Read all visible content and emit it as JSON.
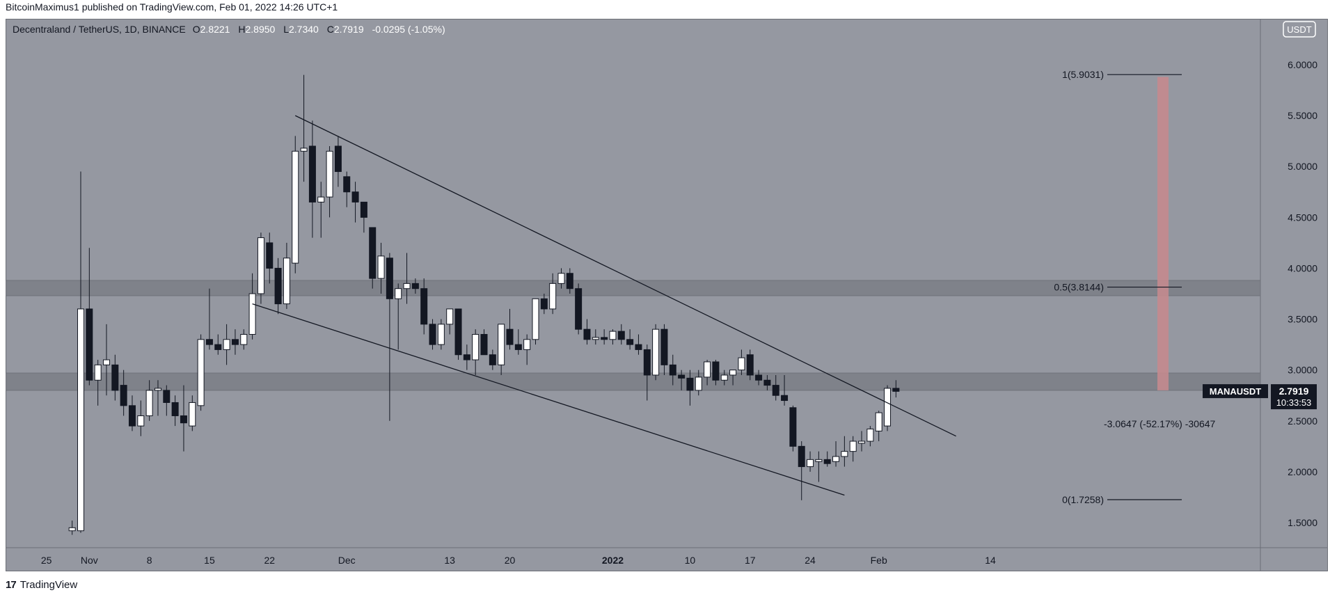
{
  "publisher": "BitcoinMaximus1 published on TradingView.com, Feb 01, 2022 14:26 UTC+1",
  "header": {
    "symbol": "Decentraland / TetherUS, 1D, BINANCE",
    "o_label": "O",
    "o_value": "2.8221",
    "h_label": "H",
    "h_value": "2.8950",
    "l_label": "L",
    "l_value": "2.7340",
    "c_label": "C",
    "c_value": "2.7919",
    "change": "-0.0295 (-1.05%)"
  },
  "currency_badge": "USDT",
  "price_tag": {
    "symbol": "MANAUSDT",
    "price": "2.7919",
    "countdown": "10:33:53"
  },
  "measure_label": "-3.0647 (-52.17%) -30647",
  "footer_brand": "TradingView",
  "colors": {
    "background": "#9598a1",
    "up": "#ffffff",
    "down": "#131722",
    "zone": "#7b7e86",
    "target": "#c48a8e"
  },
  "chart_data": {
    "type": "candlestick",
    "interval": "1D",
    "yrange": [
      1.4,
      6.1
    ],
    "yticks": [
      "6.0000",
      "5.5000",
      "5.0000",
      "4.5000",
      "4.0000",
      "3.5000",
      "3.0000",
      "2.5000",
      "2.0000",
      "1.5000"
    ],
    "xticks": [
      {
        "label": "25",
        "d": -4
      },
      {
        "label": "Nov",
        "d": 1
      },
      {
        "label": "8",
        "d": 8
      },
      {
        "label": "15",
        "d": 15
      },
      {
        "label": "22",
        "d": 22
      },
      {
        "label": "Dec",
        "d": 31
      },
      {
        "label": "13",
        "d": 43
      },
      {
        "label": "20",
        "d": 50
      },
      {
        "label": "2022",
        "d": 62,
        "bold": true
      },
      {
        "label": "10",
        "d": 71
      },
      {
        "label": "17",
        "d": 78
      },
      {
        "label": "24",
        "d": 85
      },
      {
        "label": "Feb",
        "d": 93
      },
      {
        "label": "14",
        "d": 106
      }
    ],
    "candles": [
      [
        -1,
        1.42,
        1.52,
        1.38,
        1.45
      ],
      [
        0,
        1.42,
        4.95,
        1.4,
        3.6
      ],
      [
        1,
        3.6,
        4.2,
        2.85,
        2.9
      ],
      [
        2,
        2.9,
        3.1,
        2.65,
        3.05
      ],
      [
        3,
        3.05,
        3.45,
        2.75,
        3.1
      ],
      [
        4,
        3.05,
        3.15,
        2.7,
        2.8
      ],
      [
        5,
        2.85,
        3.0,
        2.55,
        2.65
      ],
      [
        6,
        2.65,
        2.75,
        2.4,
        2.45
      ],
      [
        7,
        2.45,
        2.7,
        2.35,
        2.55
      ],
      [
        8,
        2.55,
        2.9,
        2.5,
        2.8
      ],
      [
        9,
        2.8,
        2.9,
        2.55,
        2.82
      ],
      [
        10,
        2.8,
        2.85,
        2.55,
        2.68
      ],
      [
        11,
        2.68,
        2.75,
        2.45,
        2.55
      ],
      [
        12,
        2.55,
        2.85,
        2.2,
        2.48
      ],
      [
        13,
        2.45,
        2.75,
        2.4,
        2.68
      ],
      [
        14,
        2.65,
        3.35,
        2.6,
        3.3
      ],
      [
        15,
        3.3,
        3.8,
        3.2,
        3.25
      ],
      [
        16,
        3.25,
        3.35,
        3.15,
        3.2
      ],
      [
        17,
        3.2,
        3.45,
        3.05,
        3.3
      ],
      [
        18,
        3.3,
        3.4,
        3.15,
        3.25
      ],
      [
        19,
        3.25,
        3.4,
        3.2,
        3.35
      ],
      [
        20,
        3.35,
        3.95,
        3.3,
        3.75
      ],
      [
        21,
        3.75,
        4.35,
        3.65,
        4.3
      ],
      [
        22,
        4.25,
        4.35,
        3.85,
        4.0
      ],
      [
        23,
        4.0,
        4.1,
        3.55,
        3.65
      ],
      [
        24,
        3.65,
        4.25,
        3.6,
        4.1
      ],
      [
        25,
        4.05,
        5.3,
        3.95,
        5.15
      ],
      [
        26,
        5.15,
        5.9,
        4.85,
        5.18
      ],
      [
        27,
        5.2,
        5.45,
        4.3,
        4.65
      ],
      [
        28,
        4.65,
        4.85,
        4.3,
        4.7
      ],
      [
        29,
        4.7,
        5.2,
        4.5,
        5.15
      ],
      [
        30,
        5.2,
        5.3,
        4.8,
        4.95
      ],
      [
        31,
        4.9,
        4.95,
        4.6,
        4.75
      ],
      [
        32,
        4.75,
        4.85,
        4.45,
        4.65
      ],
      [
        33,
        4.65,
        4.65,
        4.35,
        4.5
      ],
      [
        34,
        4.4,
        4.4,
        3.8,
        3.9
      ],
      [
        35,
        3.9,
        4.25,
        3.75,
        4.12
      ],
      [
        36,
        4.1,
        4.15,
        2.5,
        3.7
      ],
      [
        37,
        3.7,
        3.85,
        3.2,
        3.8
      ],
      [
        38,
        3.8,
        4.15,
        3.65,
        3.85
      ],
      [
        39,
        3.85,
        3.9,
        3.75,
        3.8
      ],
      [
        40,
        3.8,
        3.9,
        3.35,
        3.45
      ],
      [
        41,
        3.45,
        3.5,
        3.2,
        3.25
      ],
      [
        42,
        3.25,
        3.5,
        3.2,
        3.45
      ],
      [
        43,
        3.45,
        3.6,
        3.35,
        3.6
      ],
      [
        44,
        3.6,
        3.6,
        3.1,
        3.15
      ],
      [
        45,
        3.15,
        3.25,
        3.0,
        3.1
      ],
      [
        46,
        3.1,
        3.4,
        2.95,
        3.35
      ],
      [
        47,
        3.35,
        3.4,
        3.15,
        3.15
      ],
      [
        48,
        3.15,
        3.2,
        3.0,
        3.05
      ],
      [
        49,
        3.05,
        3.45,
        2.95,
        3.45
      ],
      [
        50,
        3.4,
        3.6,
        3.2,
        3.25
      ],
      [
        51,
        3.25,
        3.4,
        3.15,
        3.2
      ],
      [
        52,
        3.2,
        3.35,
        3.05,
        3.3
      ],
      [
        53,
        3.3,
        3.7,
        3.25,
        3.7
      ],
      [
        54,
        3.7,
        3.75,
        3.55,
        3.6
      ],
      [
        55,
        3.6,
        3.95,
        3.55,
        3.85
      ],
      [
        56,
        3.85,
        4.0,
        3.8,
        3.95
      ],
      [
        57,
        3.95,
        4.0,
        3.75,
        3.8
      ],
      [
        58,
        3.8,
        3.85,
        3.35,
        3.4
      ],
      [
        59,
        3.4,
        3.5,
        3.25,
        3.3
      ],
      [
        60,
        3.3,
        3.4,
        3.25,
        3.32
      ],
      [
        61,
        3.32,
        3.4,
        3.25,
        3.3
      ],
      [
        62,
        3.3,
        3.4,
        3.25,
        3.38
      ],
      [
        63,
        3.38,
        3.45,
        3.25,
        3.3
      ],
      [
        64,
        3.3,
        3.4,
        3.2,
        3.25
      ],
      [
        65,
        3.25,
        3.35,
        3.15,
        3.2
      ],
      [
        66,
        3.2,
        3.25,
        2.7,
        2.95
      ],
      [
        67,
        2.95,
        3.45,
        2.9,
        3.4
      ],
      [
        68,
        3.4,
        3.45,
        2.95,
        3.05
      ],
      [
        69,
        3.05,
        3.15,
        2.85,
        2.95
      ],
      [
        70,
        2.95,
        3.0,
        2.8,
        2.92
      ],
      [
        71,
        2.92,
        3.0,
        2.65,
        2.8
      ],
      [
        72,
        2.8,
        3.0,
        2.75,
        2.93
      ],
      [
        73,
        2.93,
        3.1,
        2.85,
        3.08
      ],
      [
        74,
        3.08,
        3.1,
        2.85,
        2.9
      ],
      [
        75,
        2.9,
        3.0,
        2.85,
        2.95
      ],
      [
        76,
        2.95,
        3.0,
        2.85,
        3.0
      ],
      [
        77,
        3.0,
        3.2,
        2.95,
        3.12
      ],
      [
        78,
        3.15,
        3.2,
        2.9,
        2.95
      ],
      [
        79,
        2.95,
        3.0,
        2.85,
        2.9
      ],
      [
        80,
        2.9,
        2.95,
        2.8,
        2.85
      ],
      [
        81,
        2.85,
        2.95,
        2.7,
        2.75
      ],
      [
        82,
        2.75,
        2.95,
        2.65,
        2.7
      ],
      [
        83,
        2.63,
        2.65,
        2.2,
        2.25
      ],
      [
        84,
        2.25,
        2.3,
        1.72,
        2.05
      ],
      [
        85,
        2.05,
        2.2,
        2.0,
        2.12
      ],
      [
        86,
        2.1,
        2.2,
        1.9,
        2.12
      ],
      [
        87,
        2.12,
        2.2,
        2.05,
        2.08
      ],
      [
        88,
        2.1,
        2.3,
        2.05,
        2.15
      ],
      [
        89,
        2.15,
        2.35,
        2.05,
        2.2
      ],
      [
        90,
        2.2,
        2.35,
        2.1,
        2.3
      ],
      [
        91,
        2.28,
        2.4,
        2.2,
        2.3
      ],
      [
        92,
        2.3,
        2.45,
        2.25,
        2.42
      ],
      [
        93,
        2.4,
        2.6,
        2.3,
        2.58
      ],
      [
        94,
        2.45,
        2.85,
        2.4,
        2.82
      ],
      [
        95,
        2.82,
        2.9,
        2.73,
        2.79
      ]
    ],
    "trendlines": [
      {
        "from": [
          25,
          5.5
        ],
        "to": [
          102,
          2.35
        ]
      },
      {
        "from": [
          20,
          3.65
        ],
        "to": [
          89,
          1.77
        ]
      }
    ],
    "zones": [
      [
        3.73,
        3.88
      ],
      [
        2.8,
        2.97
      ]
    ],
    "fib_levels": [
      {
        "label": "1(5.9031)",
        "value": 5.9031
      },
      {
        "label": "0.5(3.8144)",
        "value": 3.8144
      },
      {
        "label": "0(1.7258)",
        "value": 1.7258
      }
    ],
    "target_range": [
      2.8,
      5.88
    ],
    "last_price": 2.7919
  }
}
